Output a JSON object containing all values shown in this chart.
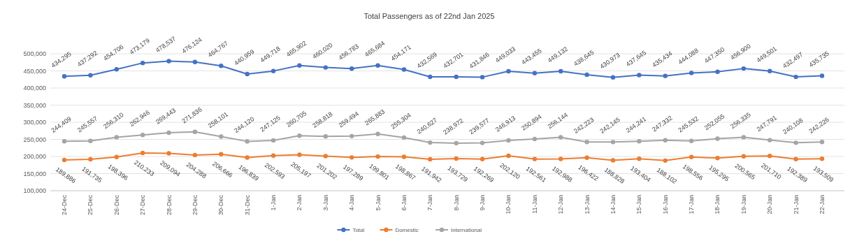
{
  "chart_data": {
    "type": "line",
    "title": "Total Passengers as of 22nd Jan 2025",
    "categories": [
      "24-Dec",
      "25-Dec",
      "26-Dec",
      "27-Dec",
      "28-Dec",
      "29-Dec",
      "30-Dec",
      "31-Dec",
      "1-Jan",
      "2-Jan",
      "3-Jan",
      "4-Jan",
      "5-Jan",
      "6-Jan",
      "7-Jan",
      "8-Jan",
      "9-Jan",
      "10-Jan",
      "11-Jan",
      "12-Jan",
      "13-Jan",
      "14-Jan",
      "15-Jan",
      "16-Jan",
      "17-Jan",
      "18-Jan",
      "19-Jan",
      "20-Jan",
      "21-Jan",
      "22-Jan"
    ],
    "series": [
      {
        "name": "Total",
        "color": "#4472c4",
        "values": [
          434295,
          437292,
          454706,
          473179,
          478537,
          476124,
          464767,
          440959,
          449718,
          465902,
          460020,
          456783,
          465684,
          454171,
          432569,
          432701,
          431846,
          449033,
          443455,
          449132,
          438645,
          430973,
          437645,
          435434,
          444088,
          447350,
          456900,
          449501,
          432497,
          435735
        ],
        "value_labels": [
          "434,295",
          "437,292",
          "454,706",
          "473,179",
          "478,537",
          "476,124",
          "464,767",
          "440,959",
          "449,718",
          "465,902",
          "460,020",
          "456,783",
          "465,684",
          "454,171",
          "432,569",
          "432,701",
          "431,846",
          "449,033",
          "443,455",
          "449,132",
          "438,645",
          "430,973",
          "437,645",
          "435,434",
          "444,088",
          "447,350",
          "456,900",
          "449,501",
          "432,497",
          "435,735"
        ]
      },
      {
        "name": "Domestic",
        "color": "#ed7d31",
        "values": [
          189886,
          191735,
          198396,
          210233,
          209094,
          204288,
          206666,
          196839,
          202593,
          205197,
          201202,
          197289,
          199801,
          198867,
          191942,
          193729,
          192269,
          202120,
          192561,
          192988,
          196422,
          188828,
          193404,
          188102,
          198556,
          195295,
          200565,
          201710,
          192389,
          193509
        ],
        "value_labels": [
          "189,886",
          "191,735",
          "198,396",
          "210,233",
          "209,094",
          "204,288",
          "206,666",
          "196,839",
          "202,593",
          "205,197",
          "201,202",
          "197,289",
          "199,801",
          "198,867",
          "191,942",
          "193,729",
          "192,269",
          "202,120",
          "192,561",
          "192,988",
          "196,422",
          "188,828",
          "193,404",
          "188,102",
          "198,556",
          "195,295",
          "200,565",
          "201,710",
          "192,389",
          "193,509"
        ]
      },
      {
        "name": "International",
        "color": "#a5a5a5",
        "values": [
          244409,
          245557,
          256310,
          262946,
          269443,
          271836,
          258101,
          244120,
          247125,
          260705,
          258818,
          259494,
          265883,
          255304,
          240627,
          238972,
          239577,
          246913,
          250894,
          256144,
          242223,
          242145,
          244241,
          247332,
          245532,
          252055,
          256335,
          247791,
          240108,
          242226
        ],
        "value_labels": [
          "244,409",
          "245,557",
          "256,310",
          "262,946",
          "269,443",
          "271,836",
          "258,101",
          "244,120",
          "247,125",
          "260,705",
          "258,818",
          "259,494",
          "265,883",
          "255,304",
          "240,627",
          "238,972",
          "239,577",
          "246,913",
          "250,894",
          "256,144",
          "242,223",
          "242,145",
          "244,241",
          "247,332",
          "245,532",
          "252,055",
          "256,335",
          "247,791",
          "240,108",
          "242,226"
        ]
      }
    ],
    "ylim": [
      100000,
      500000
    ],
    "yticks": [
      {
        "value": 100000,
        "label": "100,000"
      },
      {
        "value": 150000,
        "label": "150,000"
      },
      {
        "value": 200000,
        "label": "200,000"
      },
      {
        "value": 250000,
        "label": "250,000"
      },
      {
        "value": 300000,
        "label": "300,000"
      },
      {
        "value": 350000,
        "label": "350,000"
      },
      {
        "value": 400000,
        "label": "400,000"
      },
      {
        "value": 450000,
        "label": "450,000"
      },
      {
        "value": 500000,
        "label": "500,000"
      }
    ],
    "grid": "y",
    "legend": "bottom",
    "marker": "circle",
    "line_style": "solid"
  }
}
